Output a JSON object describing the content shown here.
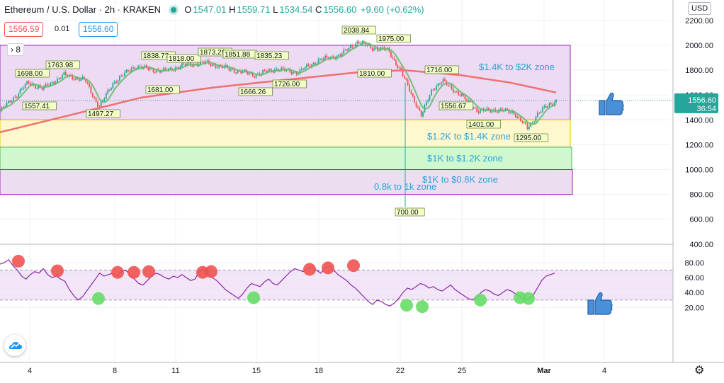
{
  "header": {
    "symbol": "Ethereum / U.S. Dollar · 2h · KRAKEN",
    "open_label": "O",
    "open": "1547.01",
    "high_label": "H",
    "high": "1559.71",
    "low_label": "L",
    "low": "1534.54",
    "close_label": "C",
    "close": "1556.60",
    "change": "+9.60 (+0.62%)"
  },
  "trade": {
    "sell_price": "1556.59",
    "spread": "0.01",
    "buy_price": "1556.60",
    "sell_color": "#ef5350",
    "buy_color": "#2196f3"
  },
  "indicator_badge": "8",
  "currency": "USD",
  "chart_data": [
    {
      "type": "line",
      "title": "",
      "series": [
        {
          "name": "",
          "values": []
        }
      ],
      "price_axis": {
        "ticks": [
          "2200.00",
          "2000.00",
          "1800.00",
          "1600.00",
          "1400.00",
          "1200.00",
          "1000.00",
          "800.00",
          "600.00",
          "400.00"
        ],
        "tick_values": [
          2200,
          2000,
          1800,
          1600,
          1400,
          1200,
          1000,
          800,
          600,
          400
        ],
        "current_price": "1556.60",
        "countdown": "36:54"
      },
      "time_axis": {
        "ticks": [
          "4",
          "8",
          "11",
          "15",
          "18",
          "22",
          "25",
          "Mar",
          "4"
        ]
      },
      "zones": [
        {
          "label": "$1.4K to $2K zone",
          "low": 1400,
          "high": 2000,
          "fill": "#e9d5f0",
          "stroke": "#9c27b0"
        },
        {
          "label": "$1.2K to $1.4K zone",
          "low": 1180,
          "high": 1400,
          "fill": "#fff6c4",
          "stroke": "#e6c800"
        },
        {
          "label": "$1K to $1.2K zone",
          "low": 1000,
          "high": 1180,
          "fill": "#c8f7c5",
          "stroke": "#4caf50"
        },
        {
          "label": "$1K to $0.8K zone",
          "low": 800,
          "high": 1000,
          "fill": "#ead7ef",
          "stroke": "#9c27b0"
        },
        {
          "label": "0.8k to 1k zone",
          "low": 800,
          "high": 1000,
          "fill": "none",
          "stroke": "none"
        }
      ],
      "price_labels": [
        "1698.00",
        "1763.98",
        "1838.7?",
        "1818.00",
        "1873.29",
        "1851.88",
        "1835.23",
        "2038.84",
        "1975.00",
        "1716.00",
        "1557.41",
        "1497.27",
        "1681.00",
        "1666.26",
        "1726.00",
        "1810.00",
        "1556.67",
        "1401.00",
        "1295.00",
        "700.00"
      ],
      "moving_average": {
        "color": "#ef7070"
      }
    },
    {
      "type": "line",
      "title": "",
      "axis": {
        "ticks": [
          "80.00",
          "60.00",
          "40.00",
          "20.00"
        ],
        "tick_values": [
          80,
          60,
          40,
          20
        ]
      },
      "band": {
        "upper": 70,
        "lower": 30,
        "fill": "#f3e5f8"
      },
      "line_color": "#8e24aa",
      "series": [
        {
          "name": "",
          "values": [
            78,
            80,
            84,
            76,
            70,
            62,
            58,
            64,
            68,
            66,
            72,
            64,
            60,
            62,
            58,
            55,
            44,
            36,
            30,
            34,
            42,
            50,
            58,
            66,
            62,
            64,
            66,
            62,
            68,
            70,
            64,
            58,
            52,
            50,
            56,
            62,
            66,
            64,
            60,
            58,
            62,
            60,
            64,
            60,
            56,
            58,
            68,
            72,
            66,
            60,
            56,
            50,
            44,
            40,
            36,
            32,
            38,
            46,
            52,
            50,
            48,
            54,
            58,
            52,
            50,
            56,
            62,
            68,
            72,
            70,
            68,
            72,
            74,
            70,
            66,
            72,
            76,
            70,
            64,
            60,
            56,
            50,
            46,
            40,
            34,
            28,
            24,
            30,
            28,
            24,
            22,
            26,
            32,
            40,
            46,
            44,
            48,
            52,
            50,
            46,
            48,
            44,
            42,
            46,
            50,
            44,
            40,
            36,
            32,
            30,
            34,
            40,
            44,
            42,
            38,
            36,
            40,
            44,
            42,
            38,
            34,
            30,
            32,
            36,
            46,
            56,
            62,
            64,
            66
          ]
        }
      ],
      "overbought_markers": [
        82,
        69,
        67,
        67,
        68,
        67,
        68,
        71,
        73,
        76
      ],
      "oversold_markers": [
        32,
        33,
        23,
        21,
        30,
        33,
        32
      ],
      "marker_colors": {
        "overbought": "#ef5350",
        "oversold": "#66dd66"
      }
    }
  ]
}
